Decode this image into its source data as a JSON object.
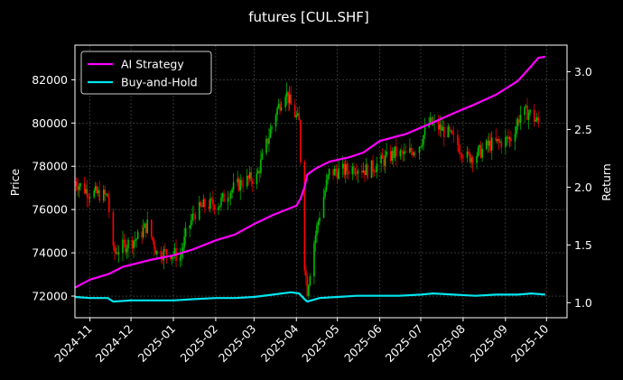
{
  "chart_data": {
    "type": "line",
    "title": "futures [CUL.SHF]",
    "xlabel": "",
    "ylabel": "Price",
    "y2label": "Return",
    "x_ticks": [
      "2024-11",
      "2024-12",
      "2025-01",
      "2025-02",
      "2025-03",
      "2025-04",
      "2025-05",
      "2025-06",
      "2025-07",
      "2025-08",
      "2025-09",
      "2025-10"
    ],
    "x_range": [
      "2024-10-21",
      "2025-10-16"
    ],
    "y_ticks": [
      "72000",
      "74000",
      "76000",
      "78000",
      "80000",
      "82000"
    ],
    "ylim": [
      71000,
      83600
    ],
    "y2_ticks": [
      "1.0",
      "1.5",
      "2.0",
      "2.5",
      "3.0"
    ],
    "y2lim": [
      0.87,
      3.23
    ],
    "grid": true,
    "legend_position": "top-left",
    "colors": {
      "background": "#000000",
      "up_candle": "#00c000",
      "down_candle": "#ff0000",
      "ai_strategy": "#ff00ff",
      "buy_and_hold": "#00e5ee",
      "grid": "#555555",
      "text": "#ffffff"
    },
    "price_anchors": [
      [
        "2024-10-21",
        77300
      ],
      [
        "2024-10-31",
        76800
      ],
      [
        "2024-11-08",
        76700
      ],
      [
        "2024-11-14",
        76600
      ],
      [
        "2024-11-18",
        74000
      ],
      [
        "2024-11-28",
        74400
      ],
      [
        "2024-12-06",
        74700
      ],
      [
        "2024-12-13",
        75300
      ],
      [
        "2024-12-20",
        74000
      ],
      [
        "2024-12-31",
        74000
      ],
      [
        "2025-01-06",
        73800
      ],
      [
        "2025-01-10",
        74800
      ],
      [
        "2025-01-16",
        75800
      ],
      [
        "2025-01-24",
        76200
      ],
      [
        "2025-02-04",
        76300
      ],
      [
        "2025-02-10",
        76800
      ],
      [
        "2025-02-21",
        77300
      ],
      [
        "2025-03-03",
        77500
      ],
      [
        "2025-03-10",
        79000
      ],
      [
        "2025-03-17",
        80500
      ],
      [
        "2025-03-24",
        81500
      ],
      [
        "2025-03-28",
        80800
      ],
      [
        "2025-04-03",
        80000
      ],
      [
        "2025-04-07",
        73500
      ],
      [
        "2025-04-09",
        72300
      ],
      [
        "2025-04-14",
        74500
      ],
      [
        "2025-04-18",
        75800
      ],
      [
        "2025-04-25",
        77700
      ],
      [
        "2025-05-06",
        77800
      ],
      [
        "2025-05-15",
        78000
      ],
      [
        "2025-05-23",
        77800
      ],
      [
        "2025-06-02",
        78200
      ],
      [
        "2025-06-12",
        78600
      ],
      [
        "2025-06-20",
        78500
      ],
      [
        "2025-06-30",
        79000
      ],
      [
        "2025-07-07",
        80000
      ],
      [
        "2025-07-14",
        79800
      ],
      [
        "2025-07-21",
        79500
      ],
      [
        "2025-07-28",
        79000
      ],
      [
        "2025-08-04",
        78400
      ],
      [
        "2025-08-12",
        78600
      ],
      [
        "2025-08-20",
        79000
      ],
      [
        "2025-08-28",
        79100
      ],
      [
        "2025-09-05",
        79300
      ],
      [
        "2025-09-12",
        80400
      ],
      [
        "2025-09-18",
        80500
      ],
      [
        "2025-09-25",
        80000
      ]
    ],
    "series": [
      {
        "name": "AI Strategy",
        "points": [
          [
            "2024-10-21",
            1.13
          ],
          [
            "2024-11-01",
            1.2
          ],
          [
            "2024-11-15",
            1.25
          ],
          [
            "2024-11-25",
            1.31
          ],
          [
            "2024-12-15",
            1.37
          ],
          [
            "2025-01-01",
            1.41
          ],
          [
            "2025-01-15",
            1.46
          ],
          [
            "2025-02-01",
            1.54
          ],
          [
            "2025-02-15",
            1.59
          ],
          [
            "2025-03-01",
            1.68
          ],
          [
            "2025-03-15",
            1.76
          ],
          [
            "2025-04-01",
            1.84
          ],
          [
            "2025-04-04",
            1.9
          ],
          [
            "2025-04-07",
            2.0
          ],
          [
            "2025-04-09",
            2.11
          ],
          [
            "2025-04-15",
            2.16
          ],
          [
            "2025-04-25",
            2.22
          ],
          [
            "2025-05-10",
            2.26
          ],
          [
            "2025-05-20",
            2.3
          ],
          [
            "2025-06-01",
            2.4
          ],
          [
            "2025-06-20",
            2.46
          ],
          [
            "2025-07-10",
            2.56
          ],
          [
            "2025-07-25",
            2.64
          ],
          [
            "2025-08-10",
            2.72
          ],
          [
            "2025-08-25",
            2.8
          ],
          [
            "2025-09-10",
            2.92
          ],
          [
            "2025-09-20",
            3.05
          ],
          [
            "2025-09-25",
            3.12
          ],
          [
            "2025-09-30",
            3.13
          ]
        ]
      },
      {
        "name": "Buy-and-Hold",
        "points": [
          [
            "2024-10-21",
            1.05
          ],
          [
            "2024-11-01",
            1.04
          ],
          [
            "2024-11-14",
            1.04
          ],
          [
            "2024-11-18",
            1.01
          ],
          [
            "2024-12-01",
            1.02
          ],
          [
            "2024-12-15",
            1.02
          ],
          [
            "2025-01-01",
            1.02
          ],
          [
            "2025-01-15",
            1.03
          ],
          [
            "2025-02-01",
            1.04
          ],
          [
            "2025-02-15",
            1.04
          ],
          [
            "2025-03-01",
            1.05
          ],
          [
            "2025-03-15",
            1.07
          ],
          [
            "2025-03-28",
            1.09
          ],
          [
            "2025-04-03",
            1.08
          ],
          [
            "2025-04-07",
            1.03
          ],
          [
            "2025-04-09",
            1.01
          ],
          [
            "2025-04-18",
            1.04
          ],
          [
            "2025-05-01",
            1.05
          ],
          [
            "2025-05-15",
            1.06
          ],
          [
            "2025-06-01",
            1.06
          ],
          [
            "2025-06-15",
            1.06
          ],
          [
            "2025-07-01",
            1.07
          ],
          [
            "2025-07-10",
            1.08
          ],
          [
            "2025-07-25",
            1.07
          ],
          [
            "2025-08-10",
            1.06
          ],
          [
            "2025-08-25",
            1.07
          ],
          [
            "2025-09-10",
            1.07
          ],
          [
            "2025-09-20",
            1.08
          ],
          [
            "2025-09-30",
            1.07
          ]
        ]
      }
    ]
  }
}
